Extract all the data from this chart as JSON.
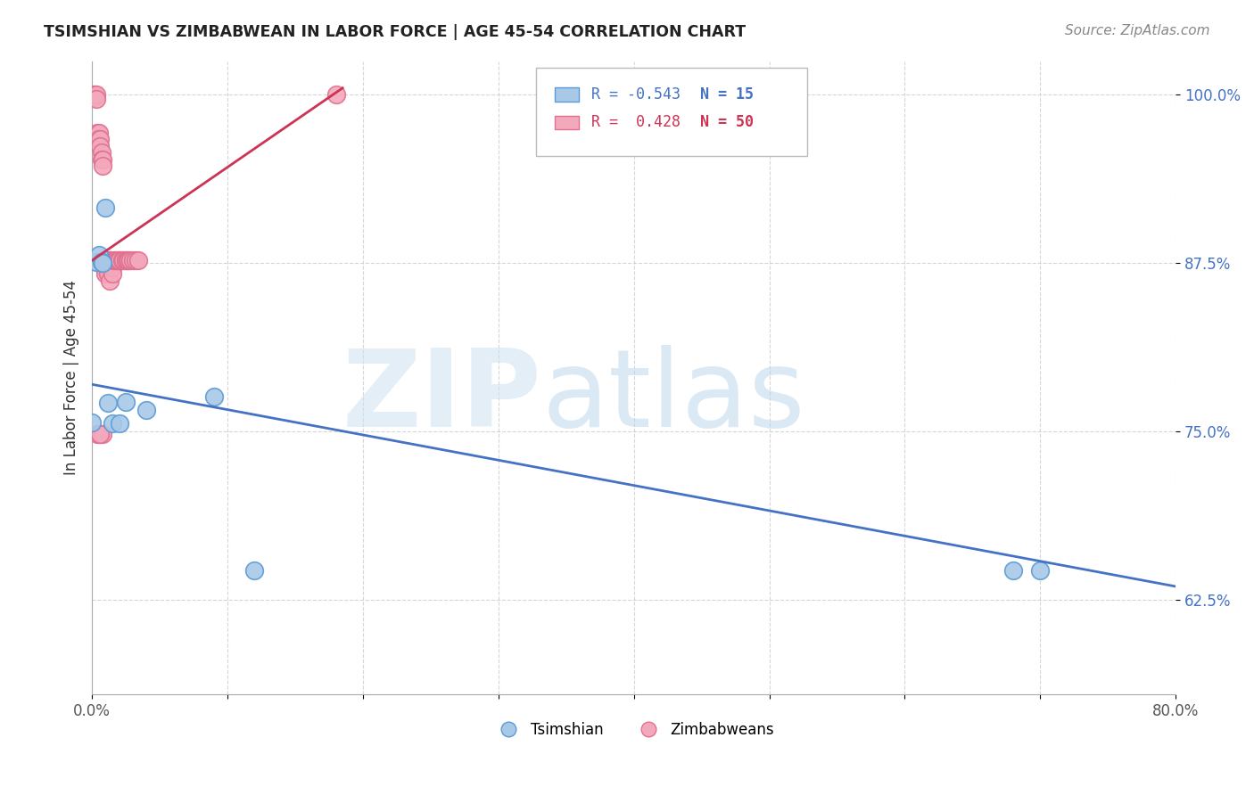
{
  "title": "TSIMSHIAN VS ZIMBABWEAN IN LABOR FORCE | AGE 45-54 CORRELATION CHART",
  "source": "Source: ZipAtlas.com",
  "ylabel": "In Labor Force | Age 45-54",
  "xlim": [
    0.0,
    0.8
  ],
  "ylim": [
    0.555,
    1.025
  ],
  "yticks": [
    0.625,
    0.75,
    0.875,
    1.0
  ],
  "ytick_labels": [
    "62.5%",
    "75.0%",
    "87.5%",
    "100.0%"
  ],
  "xticks": [
    0.0,
    0.1,
    0.2,
    0.3,
    0.4,
    0.5,
    0.6,
    0.7,
    0.8
  ],
  "xtick_labels": [
    "0.0%",
    "",
    "",
    "",
    "",
    "",
    "",
    "",
    "80.0%"
  ],
  "watermark_zip": "ZIP",
  "watermark_atlas": "atlas",
  "tsimshian_color": "#a8c8e8",
  "zimbabwean_color": "#f4a8bc",
  "tsimshian_edge": "#5b9bd5",
  "zimbabwean_edge": "#e07090",
  "trend_blue": "#4472c4",
  "trend_pink": "#cc3355",
  "legend_R_tsimshian": "-0.543",
  "legend_N_tsimshian": "15",
  "legend_R_zimbabwean": "0.428",
  "legend_N_zimbabwean": "50",
  "tsimshian_x": [
    0.003,
    0.005,
    0.007,
    0.008,
    0.01,
    0.012,
    0.015,
    0.02,
    0.025,
    0.04,
    0.09,
    0.12,
    0.68,
    0.7,
    0.0
  ],
  "tsimshian_y": [
    0.876,
    0.881,
    0.876,
    0.875,
    0.916,
    0.771,
    0.756,
    0.756,
    0.772,
    0.766,
    0.776,
    0.647,
    0.647,
    0.647,
    0.757
  ],
  "zimbabwean_x": [
    0.001,
    0.001,
    0.002,
    0.003,
    0.003,
    0.004,
    0.004,
    0.005,
    0.005,
    0.006,
    0.006,
    0.007,
    0.007,
    0.008,
    0.008,
    0.009,
    0.009,
    0.01,
    0.01,
    0.01,
    0.011,
    0.011,
    0.012,
    0.012,
    0.013,
    0.013,
    0.014,
    0.015,
    0.015,
    0.016,
    0.017,
    0.018,
    0.019,
    0.02,
    0.02,
    0.022,
    0.023,
    0.025,
    0.025,
    0.026,
    0.027,
    0.028,
    0.03,
    0.032,
    0.034,
    0.004,
    0.006,
    0.008,
    0.18,
    0.006
  ],
  "zimbabwean_y": [
    1.0,
    0.998,
    1.0,
    1.0,
    0.997,
    0.972,
    0.967,
    0.972,
    0.967,
    0.967,
    0.962,
    0.957,
    0.952,
    0.952,
    0.947,
    0.877,
    0.872,
    0.877,
    0.872,
    0.867,
    0.877,
    0.872,
    0.872,
    0.867,
    0.877,
    0.862,
    0.877,
    0.872,
    0.867,
    0.877,
    0.877,
    0.877,
    0.877,
    0.877,
    0.877,
    0.877,
    0.877,
    0.877,
    0.877,
    0.877,
    0.877,
    0.877,
    0.877,
    0.877,
    0.877,
    0.748,
    0.748,
    0.748,
    1.0,
    0.748
  ]
}
